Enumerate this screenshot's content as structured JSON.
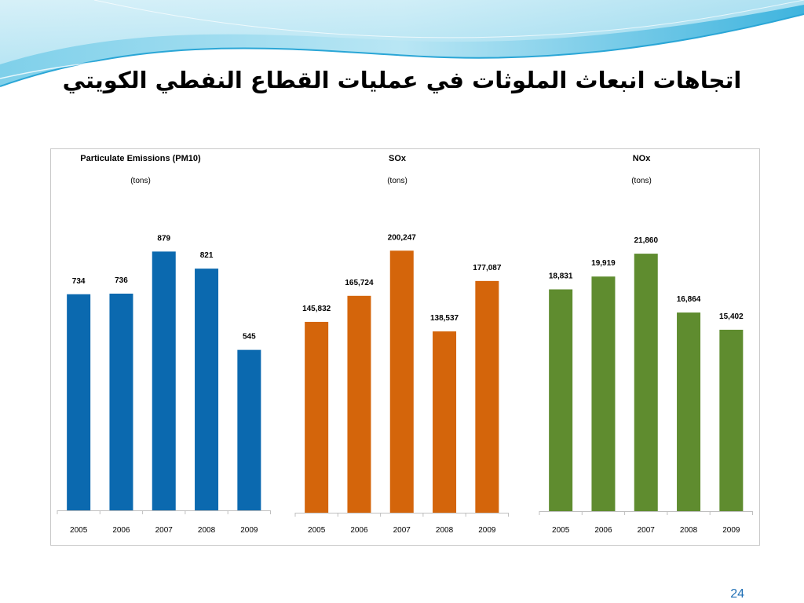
{
  "slide": {
    "title": "اتجاهات انبعاث الملوثات في عمليات القطاع النفطي الكويتي",
    "page_number": "24"
  },
  "chart_data": [
    {
      "type": "bar",
      "title": "Particulate Emissions (PM10)",
      "subtitle": "(tons)",
      "categories": [
        "2005",
        "2006",
        "2007",
        "2008",
        "2009"
      ],
      "values": [
        734,
        736,
        879,
        821,
        545
      ],
      "data_labels": [
        "734",
        "736",
        "879",
        "821",
        "545"
      ],
      "ylim": [
        0,
        1000
      ],
      "color": "#0b69af",
      "grid": false,
      "legend": "none"
    },
    {
      "type": "bar",
      "title": "SOx",
      "subtitle": "(tons)",
      "categories": [
        "2005",
        "2006",
        "2007",
        "2008",
        "2009"
      ],
      "values": [
        145832,
        165724,
        200247,
        138537,
        177087
      ],
      "data_labels": [
        "145,832",
        "165,724",
        "200,247",
        "138,537",
        "177,087"
      ],
      "ylim": [
        0,
        225000
      ],
      "color": "#d4650b",
      "grid": false,
      "legend": "none"
    },
    {
      "type": "bar",
      "title": "NOx",
      "subtitle": "(tons)",
      "categories": [
        "2005",
        "2006",
        "2007",
        "2008",
        "2009"
      ],
      "values": [
        18831,
        19919,
        21860,
        16864,
        15402
      ],
      "data_labels": [
        "18,831",
        "19,919",
        "21,860",
        "16,864",
        "15,402"
      ],
      "ylim": [
        0,
        25000
      ],
      "color": "#5f8c2f",
      "grid": false,
      "legend": "none"
    }
  ]
}
